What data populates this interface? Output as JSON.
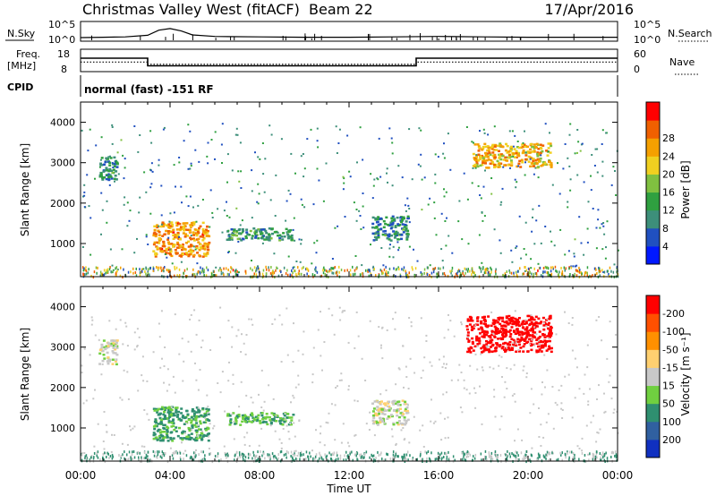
{
  "header": {
    "title": "Christmas Valley West (fitACF)",
    "beam": "Beam 22",
    "date": "17/Apr/2016"
  },
  "chart_data": [
    {
      "type": "line",
      "panel": "noise",
      "left_label": "N.Sky",
      "right_label": "N.Search",
      "left_ticks": [
        "10^5",
        "10^0"
      ],
      "right_ticks": [
        "10^5",
        "10^0"
      ],
      "x": [
        0,
        1,
        2,
        3,
        3.5,
        4,
        4.5,
        5,
        6,
        8,
        10,
        12,
        14,
        16,
        18,
        20,
        22,
        24
      ],
      "values": [
        0.9,
        1.0,
        1.1,
        1.5,
        2.8,
        3.2,
        2.6,
        1.6,
        1.2,
        1.1,
        1.0,
        1.0,
        1.1,
        1.2,
        1.1,
        1.0,
        1.0,
        1.0
      ],
      "ylim": [
        0,
        5
      ]
    },
    {
      "type": "line",
      "panel": "frequency",
      "left_label": "Freq.",
      "left_unit": "[MHz]",
      "right_label": "Nave",
      "left_ticks": [
        "18",
        "8"
      ],
      "right_ticks": [
        "60",
        "0"
      ],
      "series": [
        {
          "x": [
            0,
            3,
            3,
            15,
            15,
            24
          ],
          "values": [
            14,
            14,
            10.6,
            10.6,
            14,
            14
          ]
        },
        {
          "x": [
            0,
            3,
            3,
            15,
            15,
            24
          ],
          "values": [
            12.3,
            12.3,
            11.3,
            11.3,
            12.3,
            12.3
          ]
        }
      ],
      "ylim": [
        8,
        18
      ]
    },
    {
      "type": "scatter",
      "panel": "cpid",
      "left_label": "CPID",
      "annotation": "normal (fast) -151 RF"
    },
    {
      "type": "heatmap",
      "panel": "power",
      "ylabel": "Slant Range [km]",
      "y_ticks": [
        1000,
        2000,
        3000,
        4000
      ],
      "ylim": [
        180,
        4500
      ],
      "xlim": [
        0,
        24
      ],
      "colorbar": {
        "label": "Power [dB]",
        "ticks": [
          4,
          8,
          12,
          16,
          20,
          24,
          28
        ],
        "range": [
          0,
          31
        ],
        "colors": [
          "#0018ff",
          "#2050c0",
          "#3d8f7a",
          "#2fa040",
          "#80c040",
          "#f0d020",
          "#f5a000",
          "#f06000",
          "#ff0000"
        ]
      },
      "regions": [
        {
          "x": [
            3.2,
            5.7
          ],
          "y": [
            700,
            1550
          ],
          "level": 23
        },
        {
          "x": [
            6.5,
            9.5
          ],
          "y": [
            1100,
            1400
          ],
          "level": 10
        },
        {
          "x": [
            17.5,
            21.0
          ],
          "y": [
            2900,
            3500
          ],
          "level": 21
        },
        {
          "x": [
            13.0,
            14.6
          ],
          "y": [
            1100,
            1700
          ],
          "level": 9
        },
        {
          "x": [
            0.8,
            1.6
          ],
          "y": [
            2600,
            3200
          ],
          "level": 9
        }
      ]
    },
    {
      "type": "heatmap",
      "panel": "velocity",
      "ylabel": "Slant Range [km]",
      "xlabel": "Time UT",
      "x_tick_labels": [
        "00:00",
        "04:00",
        "08:00",
        "12:00",
        "16:00",
        "20:00",
        "00:00"
      ],
      "y_ticks": [
        1000,
        2000,
        3000,
        4000
      ],
      "ylim": [
        180,
        4500
      ],
      "xlim": [
        0,
        24
      ],
      "colorbar": {
        "label": "Velocity [m s⁻¹]",
        "ticks": [
          "200",
          "100",
          "50",
          "15",
          "-15",
          "-50",
          "-100",
          "-200"
        ],
        "colors": [
          "#1030c0",
          "#3060a0",
          "#2f8f70",
          "#70d040",
          "#c8c8c8",
          "#ffd070",
          "#ff9000",
          "#ff5000",
          "#ff0000"
        ]
      },
      "regions": [
        {
          "x": [
            3.2,
            5.7
          ],
          "y": [
            700,
            1550
          ],
          "value": 60
        },
        {
          "x": [
            6.5,
            9.5
          ],
          "y": [
            1100,
            1400
          ],
          "value": 50
        },
        {
          "x": [
            17.2,
            21.0
          ],
          "y": [
            2900,
            3800
          ],
          "value": -250
        },
        {
          "x": [
            13.0,
            14.6
          ],
          "y": [
            1100,
            1700
          ],
          "value": 0
        },
        {
          "x": [
            0.8,
            1.6
          ],
          "y": [
            2600,
            3200
          ],
          "value": 0
        }
      ]
    }
  ]
}
